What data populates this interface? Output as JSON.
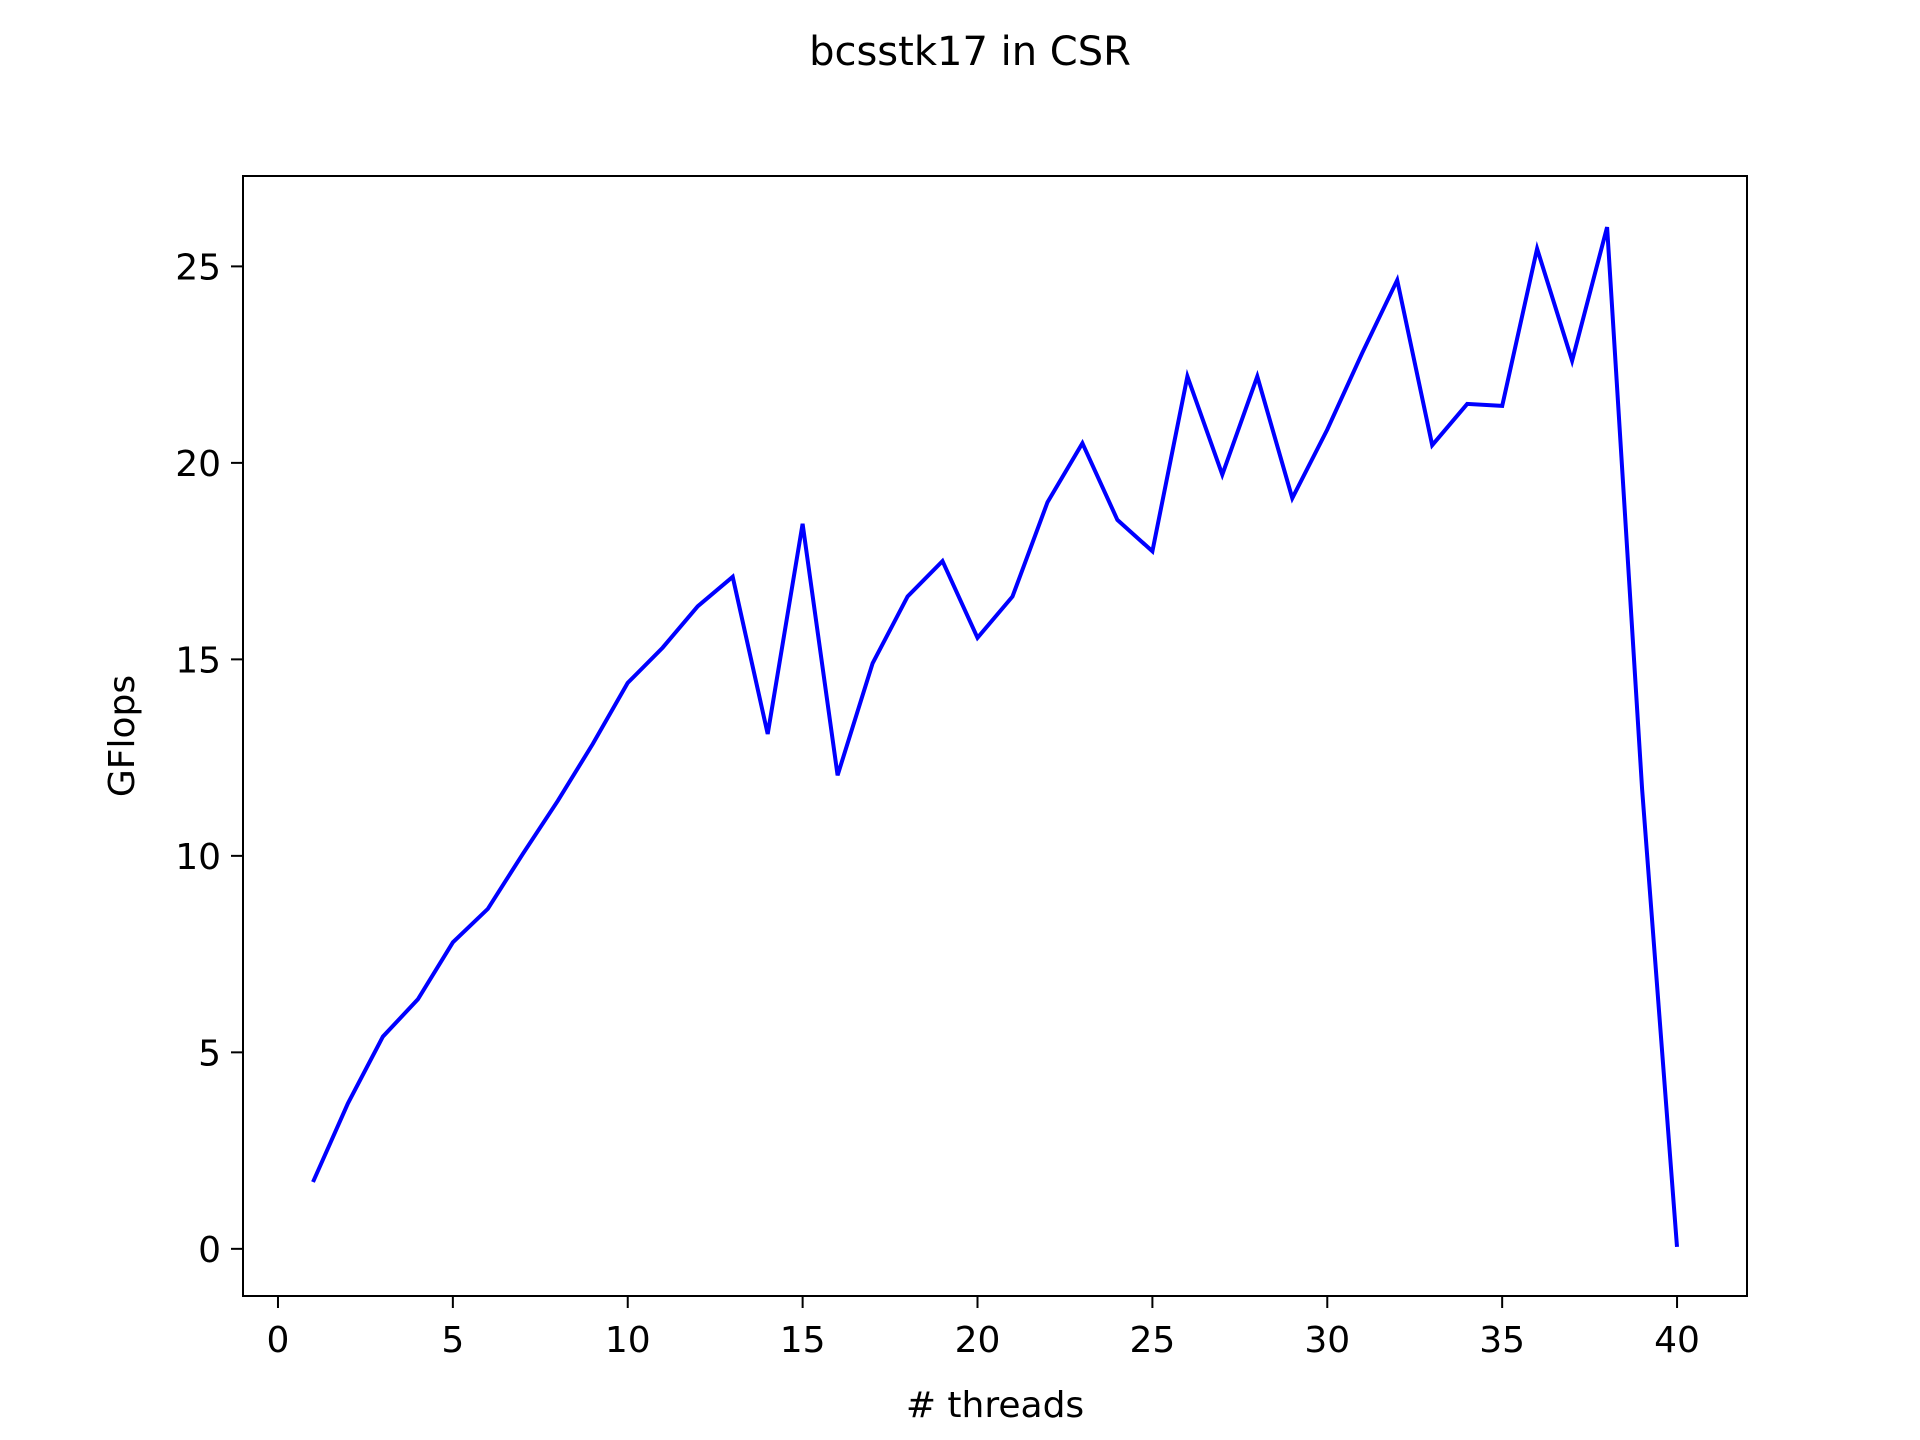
{
  "chart_data": {
    "type": "line",
    "title": "bcsstk17 in CSR",
    "xlabel": "# threads",
    "ylabel": "GFlops",
    "xlim": [
      -1,
      42
    ],
    "ylim": [
      -1.2,
      27.3
    ],
    "xticks": [
      0,
      5,
      10,
      15,
      20,
      25,
      30,
      35,
      40
    ],
    "yticks": [
      0,
      5,
      10,
      15,
      20,
      25
    ],
    "grid": false,
    "legend": "none",
    "series": [
      {
        "color": "#0000ff",
        "x": [
          1,
          2,
          3,
          4,
          5,
          6,
          7,
          8,
          9,
          10,
          11,
          12,
          13,
          14,
          15,
          16,
          17,
          18,
          19,
          20,
          21,
          22,
          23,
          24,
          25,
          26,
          27,
          28,
          29,
          30,
          31,
          32,
          33,
          34,
          35,
          36,
          37,
          38,
          39,
          40
        ],
        "y": [
          1.7,
          3.7,
          5.4,
          6.35,
          7.8,
          8.65,
          10.05,
          11.4,
          12.85,
          14.4,
          15.3,
          16.35,
          17.1,
          13.1,
          18.45,
          12.05,
          14.9,
          16.6,
          17.5,
          15.55,
          16.6,
          19.0,
          20.5,
          18.55,
          17.75,
          22.2,
          19.7,
          22.2,
          19.1,
          20.85,
          22.8,
          24.65,
          20.45,
          21.5,
          21.45,
          25.45,
          22.6,
          26.0,
          11.7,
          0.05
        ]
      }
    ]
  }
}
